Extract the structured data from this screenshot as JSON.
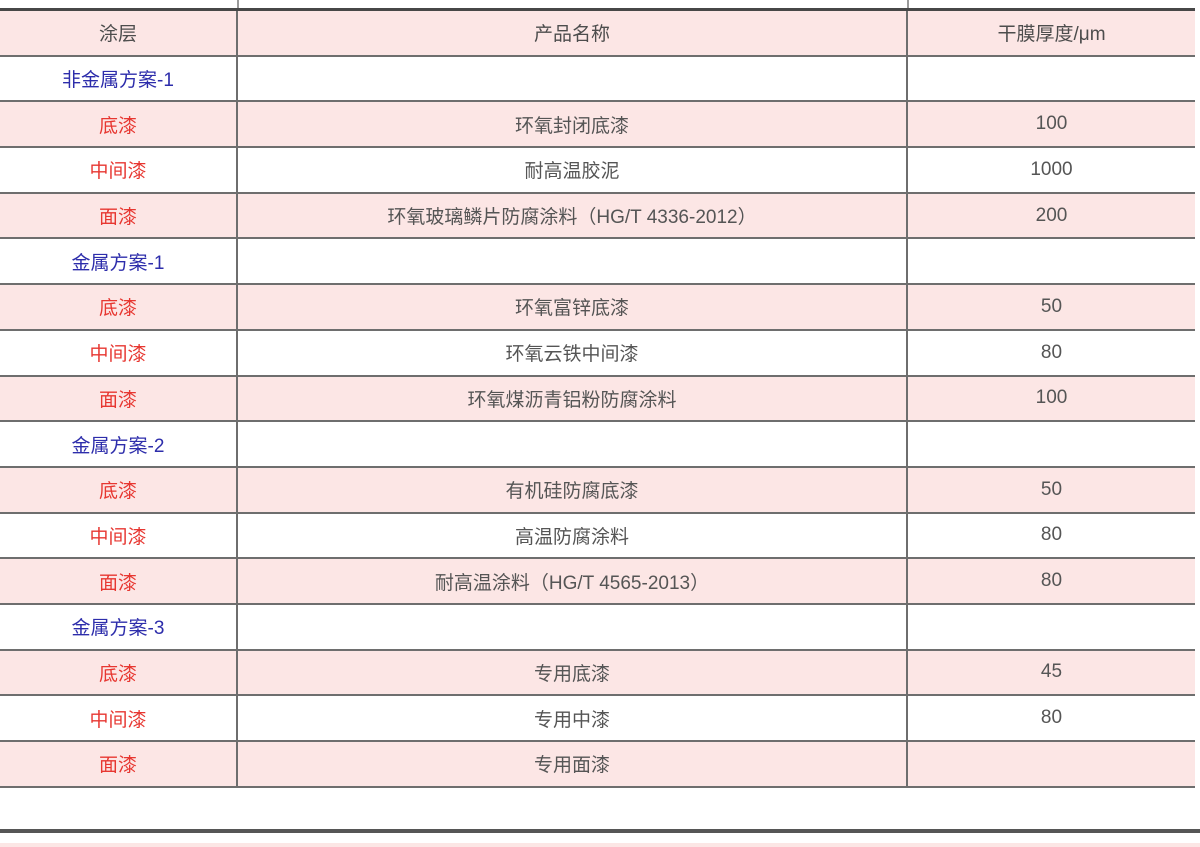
{
  "table": {
    "columns": [
      "涂层",
      "产品名称",
      "干膜厚度/μm"
    ],
    "rows": [
      {
        "type": "section",
        "layer": "非金属方案-1",
        "product": "",
        "thickness": ""
      },
      {
        "type": "data",
        "layer": "底漆",
        "product": "环氧封闭底漆",
        "thickness": "100"
      },
      {
        "type": "data",
        "layer": "中间漆",
        "product": "耐高温胶泥",
        "thickness": "1000"
      },
      {
        "type": "data",
        "layer": "面漆",
        "product": "环氧玻璃鳞片防腐涂料（HG/T 4336-2012）",
        "thickness": "200"
      },
      {
        "type": "section",
        "layer": "金属方案-1",
        "product": "",
        "thickness": ""
      },
      {
        "type": "data",
        "layer": "底漆",
        "product": "环氧富锌底漆",
        "thickness": "50"
      },
      {
        "type": "data",
        "layer": "中间漆",
        "product": "环氧云铁中间漆",
        "thickness": "80"
      },
      {
        "type": "data",
        "layer": "面漆",
        "product": "环氧煤沥青铝粉防腐涂料",
        "thickness": "100"
      },
      {
        "type": "section",
        "layer": "金属方案-2",
        "product": "",
        "thickness": ""
      },
      {
        "type": "data",
        "layer": "底漆",
        "product": "有机硅防腐底漆",
        "thickness": "50"
      },
      {
        "type": "data",
        "layer": "中间漆",
        "product": "高温防腐涂料",
        "thickness": "80"
      },
      {
        "type": "data",
        "layer": "面漆",
        "product": "耐高温涂料（HG/T 4565-2013）",
        "thickness": "80"
      },
      {
        "type": "section",
        "layer": "金属方案-3",
        "product": "",
        "thickness": ""
      },
      {
        "type": "data",
        "layer": "底漆",
        "product": "专用底漆",
        "thickness": "45"
      },
      {
        "type": "data",
        "layer": "中间漆",
        "product": "专用中漆",
        "thickness": "80"
      },
      {
        "type": "data",
        "layer": "面漆",
        "product": "专用面漆",
        "thickness": ""
      }
    ],
    "colors": {
      "row_pink": "#fce6e5",
      "header_text": "#4d4d4d",
      "section_text": "#2d2dab",
      "layer_text": "#e73731",
      "body_text": "#555555",
      "thin_border": "#6e6e6e",
      "thick_border": "#474747",
      "bottom_rule": "#565656"
    }
  }
}
